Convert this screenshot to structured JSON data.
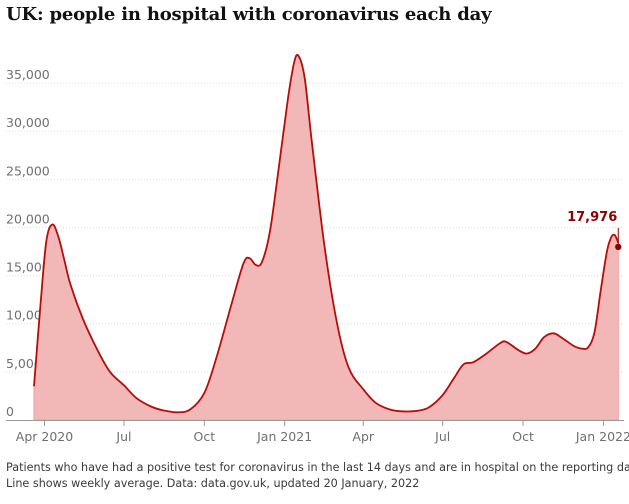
{
  "title": "UK: people in hospital with coronavirus each day",
  "footnote": {
    "line1": "Patients who have had a positive test for coronavirus in the last 14 days and are in hospital on the reporting date.",
    "line2": "Line shows weekly average. Data: data.gov.uk, updated 20 January, 2022"
  },
  "colors": {
    "fill": "#f2b8b8",
    "line": "#b80c09",
    "callout": "#8b0000",
    "grid": "#dcdcdc",
    "axis": "#999999",
    "text": "#707070"
  },
  "chart_data": {
    "type": "area",
    "title": "UK: people in hospital with coronavirus each day",
    "xlabel": "",
    "ylabel": "",
    "ylim": [
      0,
      38000
    ],
    "grid": true,
    "y_ticks": [
      0,
      5000,
      10000,
      15000,
      20000,
      25000,
      30000,
      35000
    ],
    "y_tick_labels": [
      "0",
      "5,000",
      "10,000",
      "15,000",
      "20,000",
      "25,000",
      "30,000",
      "35,000"
    ],
    "x_ticks": [
      {
        "date": "2020-04-01",
        "label": "Apr 2020"
      },
      {
        "date": "2020-07-01",
        "label": "Jul"
      },
      {
        "date": "2020-10-01",
        "label": "Oct"
      },
      {
        "date": "2021-01-01",
        "label": "Jan 2021"
      },
      {
        "date": "2021-04-01",
        "label": "Apr"
      },
      {
        "date": "2021-07-01",
        "label": "Jul"
      },
      {
        "date": "2021-10-01",
        "label": "Oct"
      },
      {
        "date": "2022-01-01",
        "label": "Jan 2022"
      }
    ],
    "series": [
      {
        "values": [
          {
            "date": "2020-03-20",
            "value": 3500
          },
          {
            "date": "2020-03-27",
            "value": 11500
          },
          {
            "date": "2020-04-03",
            "value": 18500
          },
          {
            "date": "2020-04-10",
            "value": 20300
          },
          {
            "date": "2020-04-17",
            "value": 19000
          },
          {
            "date": "2020-04-24",
            "value": 16500
          },
          {
            "date": "2020-05-01",
            "value": 14000
          },
          {
            "date": "2020-05-15",
            "value": 10500
          },
          {
            "date": "2020-06-01",
            "value": 7200
          },
          {
            "date": "2020-06-15",
            "value": 5000
          },
          {
            "date": "2020-07-01",
            "value": 3600
          },
          {
            "date": "2020-07-15",
            "value": 2300
          },
          {
            "date": "2020-08-01",
            "value": 1400
          },
          {
            "date": "2020-08-15",
            "value": 1000
          },
          {
            "date": "2020-09-01",
            "value": 800
          },
          {
            "date": "2020-09-15",
            "value": 1100
          },
          {
            "date": "2020-10-01",
            "value": 2800
          },
          {
            "date": "2020-10-15",
            "value": 6500
          },
          {
            "date": "2020-11-01",
            "value": 12000
          },
          {
            "date": "2020-11-15",
            "value": 16300
          },
          {
            "date": "2020-11-22",
            "value": 16800
          },
          {
            "date": "2020-11-29",
            "value": 16100
          },
          {
            "date": "2020-12-06",
            "value": 16400
          },
          {
            "date": "2020-12-15",
            "value": 19500
          },
          {
            "date": "2020-12-25",
            "value": 26000
          },
          {
            "date": "2021-01-05",
            "value": 33500
          },
          {
            "date": "2021-01-12",
            "value": 37200
          },
          {
            "date": "2021-01-17",
            "value": 37800
          },
          {
            "date": "2021-01-24",
            "value": 35500
          },
          {
            "date": "2021-02-01",
            "value": 29000
          },
          {
            "date": "2021-02-15",
            "value": 18500
          },
          {
            "date": "2021-03-01",
            "value": 10500
          },
          {
            "date": "2021-03-15",
            "value": 5500
          },
          {
            "date": "2021-04-01",
            "value": 3200
          },
          {
            "date": "2021-04-15",
            "value": 1800
          },
          {
            "date": "2021-05-01",
            "value": 1100
          },
          {
            "date": "2021-05-15",
            "value": 900
          },
          {
            "date": "2021-06-01",
            "value": 950
          },
          {
            "date": "2021-06-15",
            "value": 1300
          },
          {
            "date": "2021-07-01",
            "value": 2600
          },
          {
            "date": "2021-07-15",
            "value": 4500
          },
          {
            "date": "2021-07-25",
            "value": 5800
          },
          {
            "date": "2021-08-05",
            "value": 6000
          },
          {
            "date": "2021-08-20",
            "value": 6900
          },
          {
            "date": "2021-09-05",
            "value": 8000
          },
          {
            "date": "2021-09-12",
            "value": 8100
          },
          {
            "date": "2021-09-25",
            "value": 7300
          },
          {
            "date": "2021-10-05",
            "value": 6900
          },
          {
            "date": "2021-10-15",
            "value": 7400
          },
          {
            "date": "2021-10-25",
            "value": 8600
          },
          {
            "date": "2021-11-05",
            "value": 9000
          },
          {
            "date": "2021-11-15",
            "value": 8500
          },
          {
            "date": "2021-11-28",
            "value": 7700
          },
          {
            "date": "2021-12-08",
            "value": 7400
          },
          {
            "date": "2021-12-15",
            "value": 7600
          },
          {
            "date": "2021-12-22",
            "value": 9200
          },
          {
            "date": "2021-12-29",
            "value": 13500
          },
          {
            "date": "2022-01-05",
            "value": 17500
          },
          {
            "date": "2022-01-10",
            "value": 19000
          },
          {
            "date": "2022-01-14",
            "value": 19200
          },
          {
            "date": "2022-01-18",
            "value": 18400
          }
        ]
      }
    ],
    "latest": {
      "date": "2022-01-18",
      "value": 17976,
      "label": "17,976"
    }
  }
}
